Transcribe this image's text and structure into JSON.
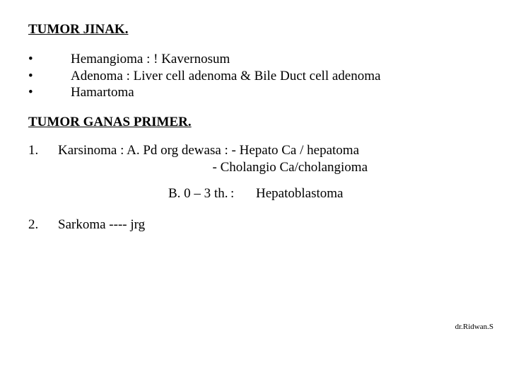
{
  "heading1": "TUMOR  JINAK.",
  "bullets": {
    "b1": "Hemangioma  : ! Kavernosum",
    "b2": "Adenoma : Liver cell adenoma & Bile Duct cell adenoma",
    "b3": "Hamartoma"
  },
  "heading2": "TUMOR  GANAS PRIMER.",
  "item1": {
    "num": " 1.",
    "line1": "Karsinoma : A. Pd org dewasa  :  - Hepato Ca / hepatoma",
    "line2_indent": "                                              - Cholangio Ca/cholangioma",
    "b_label": "B.  0 – 3 th.",
    "b_colon": ":",
    "b_val": "Hepatoblastoma"
  },
  "item2": {
    "num": "2.",
    "text": "Sarkoma ---- jrg"
  },
  "footer": "dr.Ridwan.S",
  "dot": "•"
}
